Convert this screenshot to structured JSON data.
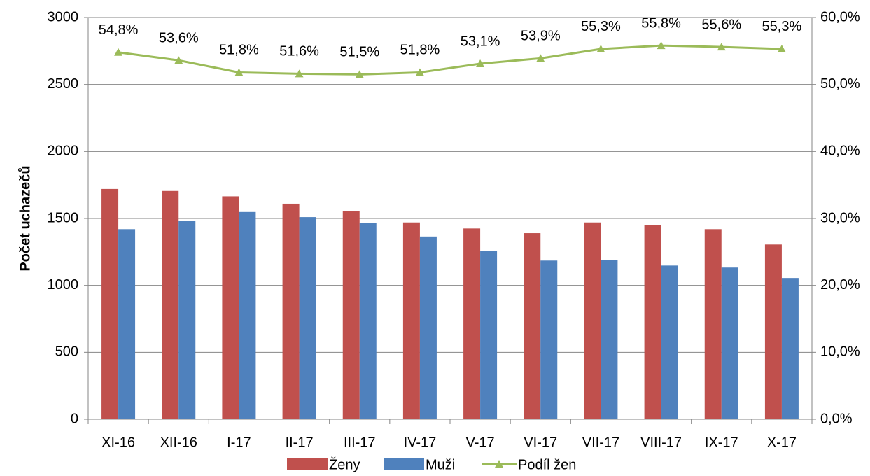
{
  "chart_data": {
    "type": "bar",
    "y_label": "Počet uchazečů",
    "categories": [
      "XI-16",
      "XII-16",
      "I-17",
      "II-17",
      "III-17",
      "IV-17",
      "V-17",
      "VI-17",
      "VII-17",
      "VIII-17",
      "IX-17",
      "X-17"
    ],
    "series": [
      {
        "name": "Ženy",
        "type": "bar",
        "color": "#c0504d",
        "values": [
          1720,
          1705,
          1665,
          1610,
          1555,
          1470,
          1425,
          1390,
          1470,
          1450,
          1420,
          1305
        ]
      },
      {
        "name": "Muži",
        "type": "bar",
        "color": "#4f81bd",
        "values": [
          1420,
          1480,
          1548,
          1510,
          1465,
          1365,
          1258,
          1185,
          1190,
          1148,
          1133,
          1055
        ]
      },
      {
        "name": "Podíl žen",
        "type": "line",
        "axis": "y2",
        "color": "#9bbb59",
        "values": [
          54.8,
          53.6,
          51.8,
          51.6,
          51.5,
          51.8,
          53.1,
          53.9,
          55.3,
          55.8,
          55.6,
          55.3
        ],
        "value_labels": [
          "54,8%",
          "53,6%",
          "51,8%",
          "51,6%",
          "51,5%",
          "51,8%",
          "53,1%",
          "53,9%",
          "55,3%",
          "55,8%",
          "55,6%",
          "55,3%"
        ]
      }
    ],
    "ylim": [
      0,
      3000
    ],
    "yticks": [
      0,
      500,
      1000,
      1500,
      2000,
      2500,
      3000
    ],
    "y2lim": [
      0,
      60
    ],
    "y2ticks": [
      {
        "value": 0,
        "label": "0,0%"
      },
      {
        "value": 10,
        "label": "10,0%"
      },
      {
        "value": 20,
        "label": "20,0%"
      },
      {
        "value": 30,
        "label": "30,0%"
      },
      {
        "value": 40,
        "label": "40,0%"
      },
      {
        "value": 50,
        "label": "50,0%"
      },
      {
        "value": 60,
        "label": "60,0%"
      }
    ],
    "grid": true,
    "legend": "bottom"
  }
}
